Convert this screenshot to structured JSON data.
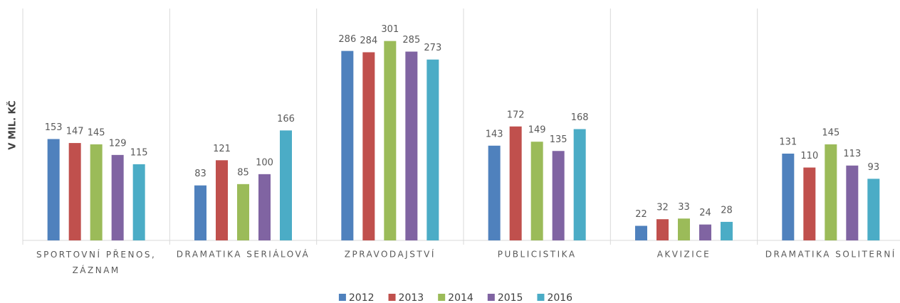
{
  "chart_data": {
    "type": "bar",
    "y_label": "V MIL. KČ",
    "categories": [
      "SPORTOVNÍ PŘENOS, ZÁZNAM",
      "DRAMATIKA SERIÁLOVÁ",
      "ZPRAVODAJSTVÍ",
      "PUBLICISTIKA",
      "AKVIZICE",
      "DRAMATIKA SOLITERNÍ"
    ],
    "series": [
      {
        "name": "2012",
        "color": "#4f81bd",
        "values": [
          153,
          83,
          286,
          143,
          22,
          131
        ]
      },
      {
        "name": "2013",
        "color": "#c0504d",
        "values": [
          147,
          121,
          284,
          172,
          32,
          110
        ]
      },
      {
        "name": "2014",
        "color": "#9bbb59",
        "values": [
          145,
          85,
          301,
          149,
          33,
          145
        ]
      },
      {
        "name": "2015",
        "color": "#8064a2",
        "values": [
          129,
          100,
          285,
          135,
          24,
          113
        ]
      },
      {
        "name": "2016",
        "color": "#4bacc6",
        "values": [
          115,
          166,
          273,
          168,
          28,
          93
        ]
      }
    ],
    "ylim": [
      0,
      350
    ],
    "legend": "bottom"
  }
}
